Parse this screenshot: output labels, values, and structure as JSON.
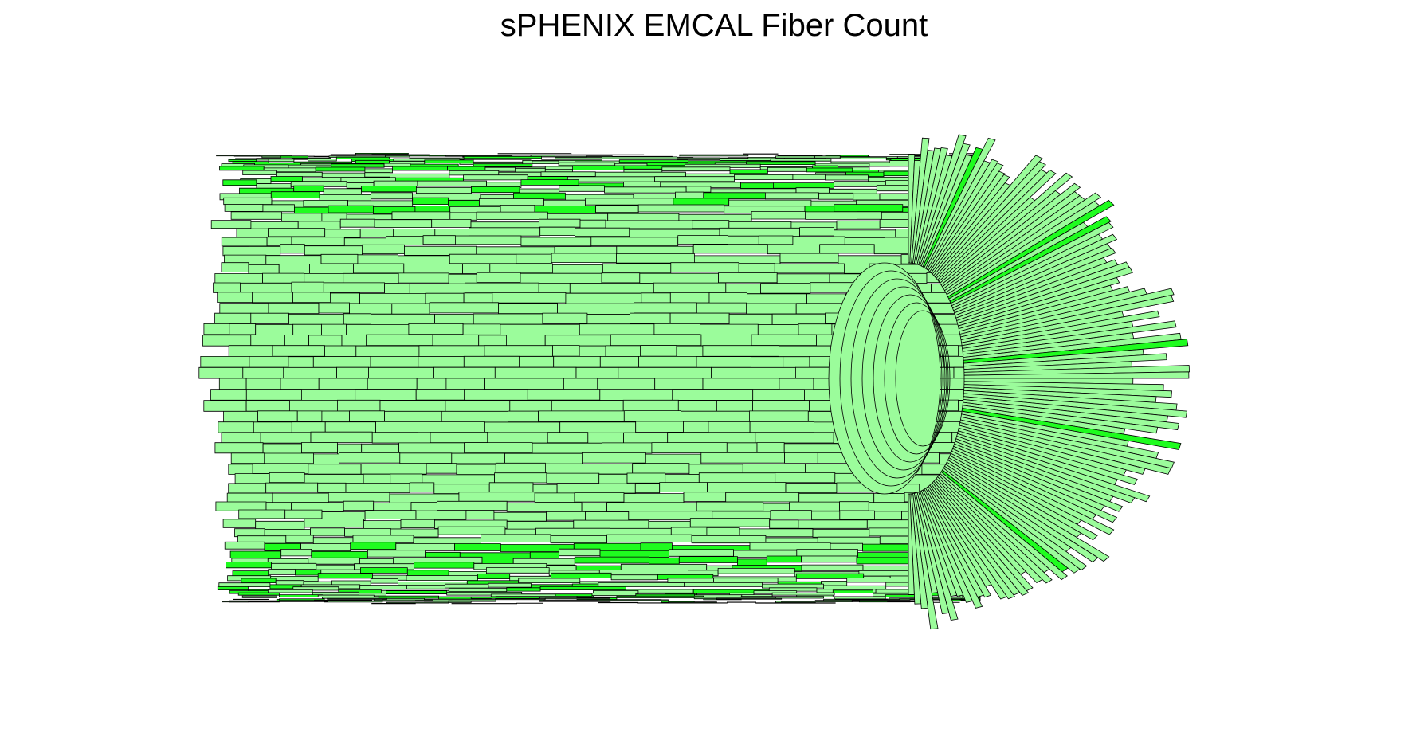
{
  "title": "sPHENIX EMCAL Fiber Count",
  "colors": {
    "background": "#ffffff",
    "tower_fill_light": "#9bfc9b",
    "tower_fill_bright": "#1ffc1f",
    "outline": "#000000"
  }
}
